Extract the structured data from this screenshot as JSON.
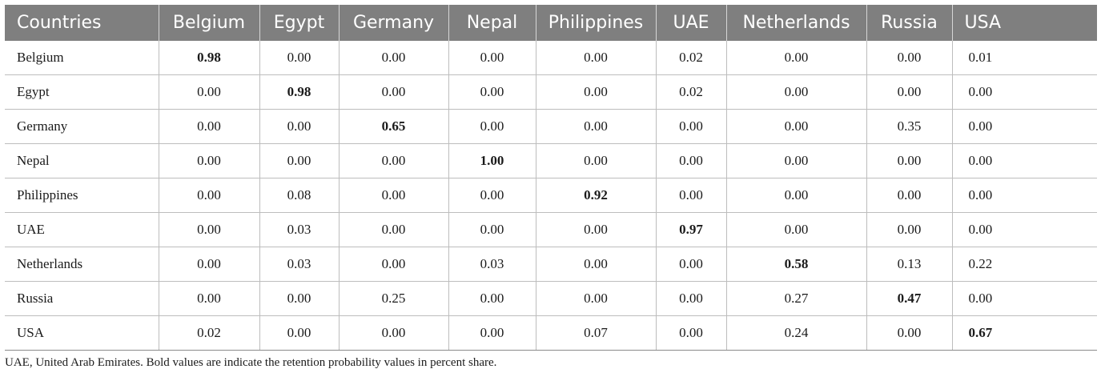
{
  "table": {
    "header": [
      "Countries",
      "Belgium",
      "Egypt",
      "Germany",
      "Nepal",
      "Philippines",
      "UAE",
      "Netherlands",
      "Russia",
      "USA"
    ],
    "rows": [
      {
        "label": "Belgium",
        "values": [
          "0.98",
          "0.00",
          "0.00",
          "0.00",
          "0.00",
          "0.02",
          "0.00",
          "0.00",
          "0.01"
        ]
      },
      {
        "label": "Egypt",
        "values": [
          "0.00",
          "0.98",
          "0.00",
          "0.00",
          "0.00",
          "0.02",
          "0.00",
          "0.00",
          "0.00"
        ]
      },
      {
        "label": "Germany",
        "values": [
          "0.00",
          "0.00",
          "0.65",
          "0.00",
          "0.00",
          "0.00",
          "0.00",
          "0.35",
          "0.00"
        ]
      },
      {
        "label": "Nepal",
        "values": [
          "0.00",
          "0.00",
          "0.00",
          "1.00",
          "0.00",
          "0.00",
          "0.00",
          "0.00",
          "0.00"
        ]
      },
      {
        "label": "Philippines",
        "values": [
          "0.00",
          "0.08",
          "0.00",
          "0.00",
          "0.92",
          "0.00",
          "0.00",
          "0.00",
          "0.00"
        ]
      },
      {
        "label": "UAE",
        "values": [
          "0.00",
          "0.03",
          "0.00",
          "0.00",
          "0.00",
          "0.97",
          "0.00",
          "0.00",
          "0.00"
        ]
      },
      {
        "label": "Netherlands",
        "values": [
          "0.00",
          "0.03",
          "0.00",
          "0.03",
          "0.00",
          "0.00",
          "0.58",
          "0.13",
          "0.22"
        ]
      },
      {
        "label": "Russia",
        "values": [
          "0.00",
          "0.00",
          "0.25",
          "0.00",
          "0.00",
          "0.00",
          "0.27",
          "0.47",
          "0.00"
        ]
      },
      {
        "label": "USA",
        "values": [
          "0.02",
          "0.00",
          "0.00",
          "0.00",
          "0.07",
          "0.00",
          "0.24",
          "0.00",
          "0.67"
        ]
      }
    ]
  },
  "footnote": "UAE, United Arab Emirates. Bold values are indicate the retention probability values in percent share.",
  "colors": {
    "header_bg": "#7f7f7f",
    "header_text": "#ffffff",
    "grid": "#bdbdbd"
  }
}
